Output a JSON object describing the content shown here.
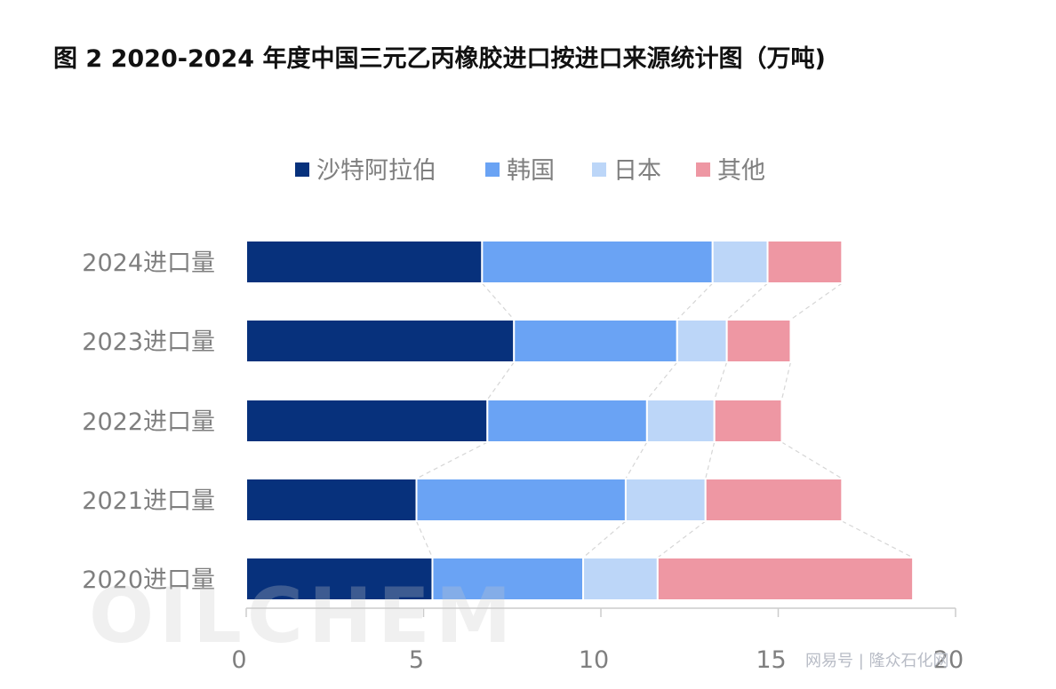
{
  "title": "图 2 2020-2024 年度中国三元乙丙橡胶进口按进口来源统计图（万吨)",
  "watermark": {
    "logo": "OILCHEM",
    "credit": "网易号 | 隆众石化网"
  },
  "colors": {
    "沙特阿拉伯": "#07317c",
    "韩国": "#6aa3f4",
    "日本": "#bcd6f8",
    "其他": "#ee97a3",
    "connector": "#d6d6d6",
    "axis": "#cccccc",
    "label": "#7f7f7f"
  },
  "chart_data": {
    "type": "bar",
    "orientation": "horizontal",
    "stacked": true,
    "title": "图 2 2020-2024 年度中国三元乙丙橡胶进口按进口来源统计图（万吨)",
    "xlabel": "",
    "ylabel": "",
    "xlim": [
      0,
      20
    ],
    "xticks": [
      0,
      5,
      10,
      15,
      20
    ],
    "legend_position": "top",
    "grid": false,
    "categories": [
      "2024进口量",
      "2023进口量",
      "2022进口量",
      "2021进口量",
      "2020进口量"
    ],
    "series": [
      {
        "name": "沙特阿拉伯",
        "values": [
          6.65,
          7.55,
          6.8,
          4.8,
          5.25
        ]
      },
      {
        "name": "韩国",
        "values": [
          6.5,
          4.6,
          4.5,
          5.9,
          4.25
        ]
      },
      {
        "name": "日本",
        "values": [
          1.55,
          1.4,
          1.9,
          2.25,
          2.1
        ]
      },
      {
        "name": "其他",
        "values": [
          2.1,
          1.8,
          1.9,
          3.85,
          7.2
        ]
      }
    ]
  }
}
